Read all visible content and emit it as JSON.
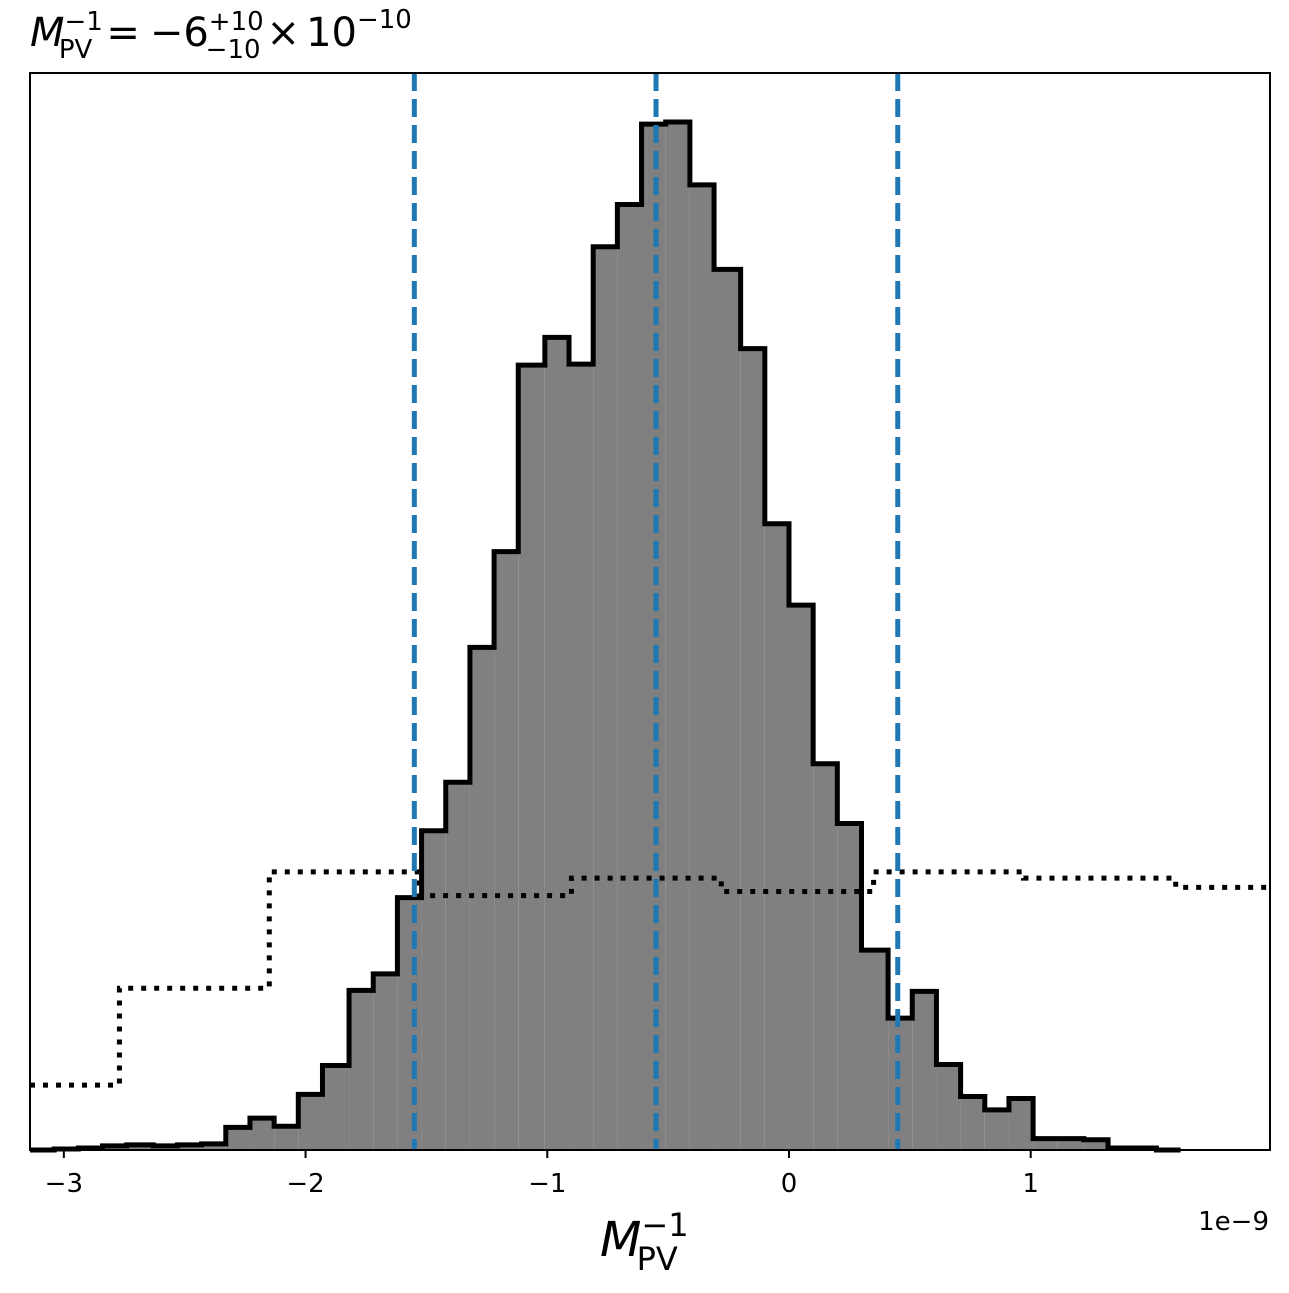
{
  "chart_data": {
    "type": "histogram",
    "title": {
      "lhs_base": "M",
      "lhs_sub": "PV",
      "lhs_sup": "−1",
      "equals": "=",
      "value": "−6",
      "err_plus": "+10",
      "err_minus": "−10",
      "times": "×",
      "exp_base": "10",
      "exp_power": "−10"
    },
    "xlabel": {
      "base": "M",
      "sub": "PV",
      "sup": "−1"
    },
    "x_offset_label": "1e−9",
    "x_scale": 1e-09,
    "xlim": [
      -3.14,
      1.99
    ],
    "ylim": [
      0,
      1.0
    ],
    "y_ticks_shown": false,
    "x_ticks": [
      {
        "value": -3,
        "label": "−3"
      },
      {
        "value": -2,
        "label": "−2"
      },
      {
        "value": -1,
        "label": "−1"
      },
      {
        "value": 0,
        "label": "0"
      },
      {
        "value": 1,
        "label": "1"
      }
    ],
    "series": [
      {
        "style": "filled-step",
        "fill": "#808080",
        "edge": "#000000",
        "edges": [
          -3.14,
          -3.04,
          -2.94,
          -2.84,
          -2.74,
          -2.63,
          -2.53,
          -2.43,
          -2.33,
          -2.23,
          -2.13,
          -2.03,
          -1.93,
          -1.82,
          -1.72,
          -1.62,
          -1.52,
          -1.42,
          -1.32,
          -1.22,
          -1.12,
          -1.01,
          -0.91,
          -0.81,
          -0.71,
          -0.61,
          -0.51,
          -0.41,
          -0.31,
          -0.2,
          -0.1,
          0.0,
          0.1,
          0.2,
          0.3,
          0.41,
          0.51,
          0.61,
          0.71,
          0.81,
          0.91,
          1.01,
          1.11,
          1.22,
          1.32,
          1.42,
          1.52,
          1.62
        ],
        "values": [
          0.0,
          0.001,
          0.002,
          0.004,
          0.005,
          0.004,
          0.005,
          0.006,
          0.022,
          0.031,
          0.023,
          0.054,
          0.082,
          0.155,
          0.171,
          0.245,
          0.31,
          0.357,
          0.488,
          0.581,
          0.762,
          0.789,
          0.763,
          0.877,
          0.918,
          0.996,
          0.998,
          0.937,
          0.855,
          0.778,
          0.608,
          0.529,
          0.375,
          0.317,
          0.194,
          0.128,
          0.154,
          0.083,
          0.052,
          0.039,
          0.05,
          0.011,
          0.011,
          0.01,
          0.002,
          0.002,
          0.0
        ]
      },
      {
        "style": "dotted-step",
        "edge": "#000000",
        "edges": [
          -3.14,
          -2.77,
          -2.15,
          -1.53,
          -0.9,
          -0.28,
          0.35,
          0.97,
          1.6,
          1.99
        ],
        "values": [
          0.063,
          0.157,
          0.27,
          0.247,
          0.264,
          0.251,
          0.27,
          0.264,
          0.255
        ]
      }
    ],
    "vlines": [
      {
        "value": -1.55,
        "color": "#1f77b4",
        "style": "dashed"
      },
      {
        "value": -0.55,
        "color": "#1f77b4",
        "style": "dashed"
      },
      {
        "value": 0.45,
        "color": "#1f77b4",
        "style": "dashed"
      }
    ]
  }
}
